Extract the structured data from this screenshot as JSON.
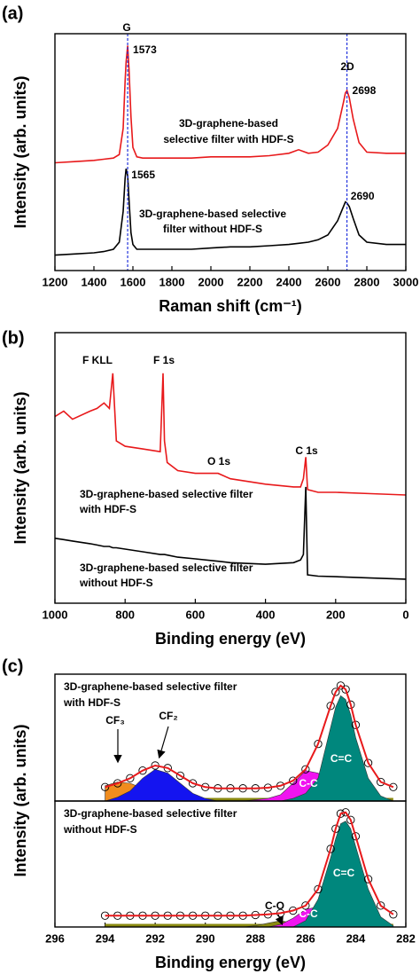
{
  "chart_data": [
    {
      "type": "line",
      "panel": "(a)",
      "xlabel": "Raman shift (cm⁻¹)",
      "ylabel": "Intensity (arb. units)",
      "xlim": [
        1200,
        3000
      ],
      "xticks": [
        1200,
        1400,
        1600,
        1800,
        2000,
        2200,
        2400,
        2600,
        2800,
        3000
      ],
      "ylim": [
        0,
        100
      ],
      "x": [
        1200,
        1300,
        1400,
        1450,
        1500,
        1530,
        1550,
        1560,
        1565,
        1573,
        1580,
        1590,
        1600,
        1620,
        1650,
        1700,
        1800,
        1900,
        2000,
        2100,
        2200,
        2300,
        2400,
        2450,
        2500,
        2550,
        2600,
        2650,
        2680,
        2690,
        2698,
        2710,
        2730,
        2760,
        2800,
        2900,
        3000
      ],
      "series": [
        {
          "color": "#e8191b",
          "values": [
            45.5,
            46,
            46.5,
            47,
            47.5,
            49,
            60,
            80,
            88,
            95,
            85,
            65,
            52,
            48,
            47.5,
            47.5,
            47.5,
            47.5,
            48,
            48,
            48,
            48.5,
            49.5,
            51,
            49.5,
            50,
            53,
            60,
            71,
            75,
            76,
            73,
            64,
            54,
            50,
            49.5,
            49.5
          ]
        },
        {
          "color": "#000000",
          "values": [
            6.5,
            7,
            7.5,
            8,
            9,
            12,
            25,
            39,
            43,
            40,
            30,
            16,
            11,
            9,
            9,
            9,
            9,
            9,
            9.5,
            10,
            10,
            10.5,
            11,
            11.5,
            12,
            13,
            15,
            21,
            27,
            29,
            28.5,
            27,
            22,
            15,
            12,
            11,
            11
          ]
        }
      ],
      "marked_peaks": [
        1573,
        2698
      ],
      "peaks": [
        1565,
        2690
      ],
      "peak_line_color": "#2233dd",
      "annotations": [
        "G",
        "2D",
        "3D-graphene-based",
        "selective filter with HDF-S",
        "3D-graphene-based selective",
        "filter without HDF-S"
      ]
    },
    {
      "type": "line",
      "panel": "(b)",
      "xlabel": "Binding energy (eV)",
      "ylabel": "Intensity (arb. units)",
      "xlim": [
        1000,
        0
      ],
      "xticks": [
        1000,
        800,
        600,
        400,
        200,
        0
      ],
      "ylim": [
        0,
        100
      ],
      "x": [
        1000,
        975,
        950,
        900,
        880,
        860,
        845,
        835,
        825,
        800,
        750,
        700,
        692,
        688,
        680,
        650,
        600,
        535,
        500,
        400,
        320,
        300,
        292,
        285,
        280,
        250,
        200,
        100,
        0
      ],
      "series": [
        {
          "color": "#e8191b",
          "values": [
            69,
            71,
            68,
            71,
            72,
            74,
            72,
            85,
            60,
            58,
            57,
            56,
            85,
            60,
            52,
            49,
            48,
            48,
            46,
            44,
            43,
            43,
            46,
            54,
            42,
            41,
            41,
            40.5,
            40
          ]
        },
        {
          "color": "#000000",
          "values": [
            24,
            23.5,
            23,
            22,
            21.5,
            21,
            21,
            20.5,
            20.5,
            20,
            19,
            18,
            18,
            18,
            17.8,
            17,
            16.4,
            15.5,
            15,
            14.4,
            15,
            16,
            18,
            43,
            10.5,
            10,
            9.8,
            9.3,
            8.9
          ]
        }
      ],
      "annotations": [
        "F KLL",
        "F 1s",
        "O 1s",
        "C 1s",
        "3D-graphene-based selective filter",
        "with HDF-S",
        "3D-graphene-based selective filter",
        "without HDF-S"
      ]
    },
    {
      "type": "xps",
      "panel": "(c)",
      "ylabel": "Intensity (arb. units)",
      "xlim": [
        296,
        282
      ],
      "ylim": [
        0,
        100
      ],
      "x": [
        294,
        293.5,
        293,
        292.5,
        292,
        291.5,
        291,
        290.5,
        290,
        289.5,
        289,
        288.5,
        288,
        287.5,
        287,
        286.5,
        286,
        285.5,
        285,
        284.8,
        284.6,
        284.4,
        284.2,
        284,
        283.5,
        283,
        282.5
      ],
      "components": [
        {
          "name": "CF₃",
          "color": "#f08c1e",
          "values": [
            12,
            15,
            14,
            10,
            5,
            1,
            0,
            0,
            0,
            0,
            0,
            0,
            0,
            0,
            0,
            0,
            0,
            0,
            0,
            0,
            0,
            0,
            0,
            0,
            0,
            0,
            0
          ]
        },
        {
          "name": "CF₂",
          "color": "#1414f0",
          "values": [
            0,
            3,
            8,
            18,
            25,
            22,
            14,
            6,
            2,
            0,
            0,
            0,
            0,
            0,
            0,
            0,
            0,
            0,
            0,
            0,
            0,
            0,
            0,
            0,
            0,
            0,
            0
          ]
        },
        {
          "name": "C-C",
          "color": "#f014f0",
          "values": [
            0,
            0,
            0,
            0,
            0,
            0,
            0,
            0,
            0,
            0,
            0,
            0,
            1,
            2,
            5,
            14,
            24,
            22,
            12,
            8,
            5,
            3,
            1,
            0,
            0,
            0,
            0
          ]
        },
        {
          "name": "C=C",
          "color": "#00877d",
          "values": [
            0,
            0,
            0,
            0,
            0,
            0,
            0,
            0,
            0,
            0,
            0,
            0,
            0,
            0,
            0,
            2,
            6,
            18,
            58,
            74,
            83,
            80,
            68,
            50,
            18,
            4,
            0
          ]
        }
      ],
      "series": [
        {
          "color": "#e8191b",
          "marker_color": "#000000",
          "values": [
            11,
            14,
            18,
            24,
            28,
            26,
            20,
            14,
            11,
            10,
            10,
            10,
            10,
            10.5,
            12,
            16,
            25,
            45,
            75,
            86,
            91,
            88,
            76,
            60,
            30,
            15,
            11
          ]
        }
      ],
      "annotations": [
        "3D-graphene-based selective filter",
        "with HDF-S"
      ]
    },
    {
      "type": "xps",
      "xlabel": "Binding energy (eV)",
      "xlim": [
        296,
        282
      ],
      "xticks": [
        296,
        294,
        292,
        290,
        288,
        286,
        284,
        282
      ],
      "ylim": [
        0,
        100
      ],
      "x": [
        294,
        293.5,
        293,
        292.5,
        292,
        291.5,
        291,
        290.5,
        290,
        289.5,
        289,
        288.5,
        288,
        287.5,
        287,
        286.5,
        286,
        285.5,
        285,
        284.8,
        284.6,
        284.4,
        284.2,
        284,
        283.5,
        283,
        282.5
      ],
      "components": [
        {
          "name": "C-O",
          "color": "#8a8a10",
          "values": [
            0,
            0,
            0,
            0,
            0,
            0,
            0,
            0,
            0,
            0,
            0,
            0,
            1,
            3,
            5,
            3,
            1,
            0,
            0,
            0,
            0,
            0,
            0,
            0,
            0,
            0,
            0
          ]
        },
        {
          "name": "C-C",
          "color": "#f014f0",
          "values": [
            0,
            0,
            0,
            0,
            0,
            0,
            0,
            0,
            0,
            0,
            0,
            0,
            0,
            0,
            2,
            7,
            14,
            16,
            12,
            9,
            5,
            3,
            1,
            0,
            0,
            0,
            0
          ]
        },
        {
          "name": "C=C",
          "color": "#00877d",
          "values": [
            0,
            0,
            0,
            0,
            0,
            0,
            0,
            0,
            0,
            0,
            0,
            0,
            0,
            0,
            0,
            0,
            5,
            22,
            55,
            70,
            82,
            84,
            78,
            64,
            30,
            8,
            1
          ]
        }
      ],
      "series": [
        {
          "color": "#e8191b",
          "marker_color": "#000000",
          "values": [
            9,
            9,
            9,
            9,
            9,
            9,
            9,
            9,
            9,
            9,
            9,
            9,
            9.5,
            10,
            11,
            13,
            17,
            30,
            62,
            78,
            90,
            91,
            85,
            72,
            38,
            17,
            10
          ]
        }
      ],
      "annotations": [
        "3D-graphene-based selective filter",
        "without HDF-S"
      ]
    }
  ]
}
